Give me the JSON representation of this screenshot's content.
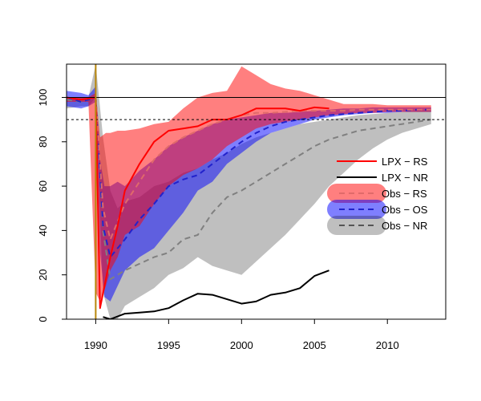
{
  "chart_data": {
    "type": "line",
    "title": "",
    "xlabel": "",
    "ylabel": "",
    "xlim": [
      1988,
      2014
    ],
    "ylim": [
      0,
      115
    ],
    "x_ticks": [
      1990,
      1995,
      2000,
      2005,
      2010
    ],
    "x_tick_labels": [
      "1990",
      "1995",
      "2000",
      "2005",
      "2010"
    ],
    "y_ticks": [
      0,
      20,
      40,
      60,
      80,
      100
    ],
    "y_tick_labels": [
      "0",
      "20",
      "40",
      "60",
      "80",
      "100"
    ],
    "grid": false,
    "reference_lines": [
      {
        "y": 100,
        "style": "solid"
      },
      {
        "y": 90,
        "style": "dotted"
      }
    ],
    "event_line": {
      "x": 1990,
      "color": "#B8860B"
    },
    "legend_position": "right",
    "colors": {
      "lpx_rs": "#FF0000",
      "lpx_nr": "#000000",
      "band_rs": "#FF000080",
      "band_os": "#0000FF80",
      "band_nr": "#00000040",
      "median_rs": "#E06A6A",
      "median_os": "#2222CC",
      "median_nr": "#808080"
    },
    "legend": [
      {
        "label": "LPX − RS",
        "kind": "line",
        "color": "#FF0000"
      },
      {
        "label": "LPX − NR",
        "kind": "line",
        "color": "#000000"
      },
      {
        "label": "Obs − RS",
        "kind": "band",
        "color": "#FF000080",
        "dash_color": "#E06A6A"
      },
      {
        "label": "Obs − OS",
        "kind": "band",
        "color": "#0000FF80",
        "dash_color": "#2222CC"
      },
      {
        "label": "Obs − NR",
        "kind": "band",
        "color": "#00000040",
        "dash_color": "#555555"
      }
    ],
    "bands": [
      {
        "name": "Obs − NR",
        "color": "#00000040",
        "x": [
          1988,
          1989,
          1989.5,
          1990,
          1990.5,
          1991,
          1991.5,
          1992,
          1993,
          1994,
          1995,
          1996,
          1997,
          1998,
          1999,
          2000,
          2001,
          2002,
          2003,
          2004,
          2005,
          2006,
          2007,
          2008,
          2009,
          2010,
          2011,
          2012,
          2013
        ],
        "upper": [
          100,
          100,
          100,
          115,
          82,
          58,
          50,
          53,
          55,
          60,
          62,
          66,
          68,
          72,
          75,
          79,
          82,
          84,
          86,
          88,
          89,
          90,
          91,
          92,
          92.5,
          93,
          93.5,
          94,
          94
        ],
        "lower": [
          95,
          96,
          96,
          100,
          12,
          0,
          0,
          6,
          10,
          14,
          20,
          23,
          28,
          24,
          22,
          20,
          26,
          32,
          38,
          45,
          52,
          60,
          66,
          72,
          77,
          81,
          84,
          86,
          88
        ]
      },
      {
        "name": "Obs − OS",
        "color": "#0000FF80",
        "x": [
          1988,
          1989,
          1989.5,
          1990,
          1990.3,
          1990.6,
          1991,
          1991.5,
          1992,
          1993,
          1994,
          1995,
          1996,
          1997,
          1998,
          1999,
          2000,
          2001,
          2002,
          2003,
          2004,
          2005,
          2006,
          2007,
          2008,
          2009,
          2010,
          2011,
          2012,
          2013
        ],
        "upper": [
          103,
          102,
          101,
          105,
          72,
          60,
          60,
          62,
          60,
          67,
          72,
          78,
          82,
          85,
          88,
          90,
          91,
          92,
          93,
          93,
          93.5,
          94,
          94.5,
          95,
          95,
          95.5,
          95.5,
          95.5,
          95.5,
          95.5
        ],
        "lower": [
          96,
          95,
          96,
          98,
          30,
          10,
          8,
          15,
          22,
          28,
          32,
          40,
          48,
          58,
          62,
          70,
          75,
          80,
          84,
          86,
          88,
          90,
          91,
          92,
          92.5,
          93,
          93,
          93.5,
          93.5,
          93.5
        ]
      },
      {
        "name": "Obs − RS",
        "color": "#FF000080",
        "x": [
          1988,
          1989,
          1989.5,
          1990,
          1990.3,
          1990.7,
          1991,
          1991.5,
          1992,
          1993,
          1994,
          1995,
          1996,
          1997,
          1998,
          1999,
          2000,
          2001,
          2002,
          2003,
          2004,
          2005,
          2006,
          2007,
          2008,
          2009,
          2010,
          2011,
          2012,
          2013
        ],
        "upper": [
          100,
          100,
          100,
          102,
          82,
          84,
          84,
          85,
          85,
          86,
          88,
          89,
          95,
          100,
          102,
          103,
          114,
          110,
          106,
          104,
          103,
          101,
          99,
          97,
          97,
          97,
          96.5,
          96.5,
          96.5,
          96.5
        ],
        "lower": [
          98,
          98,
          98,
          12,
          8,
          15,
          22,
          28,
          38,
          42,
          52,
          60,
          65,
          68,
          72,
          78,
          82,
          86,
          88,
          89,
          90,
          91,
          92,
          92.5,
          93,
          93,
          93.5,
          93.5,
          93.5,
          93.5
        ]
      }
    ],
    "series": [
      {
        "name": "Obs − NR",
        "style": "dashed",
        "color": "#808080",
        "x": [
          1988,
          1989,
          1990,
          1990.5,
          1991,
          1992,
          1993,
          1994,
          1995,
          1996,
          1997,
          1998,
          1999,
          2000,
          2001,
          2002,
          2003,
          2004,
          2005,
          2006,
          2007,
          2008,
          2009,
          2010,
          2011,
          2012,
          2013
        ],
        "y": [
          99,
          98,
          100,
          40,
          18,
          22,
          25,
          28,
          30,
          36,
          38,
          48,
          55,
          58,
          62,
          66,
          70,
          74,
          78,
          81,
          83,
          85,
          86,
          87,
          88,
          89,
          90
        ]
      },
      {
        "name": "Obs − OS",
        "style": "dashed",
        "color": "#2222CC",
        "x": [
          1988,
          1989,
          1990,
          1990.5,
          1991,
          1992,
          1993,
          1994,
          1995,
          1996,
          1997,
          1998,
          1999,
          2000,
          2001,
          2002,
          2003,
          2004,
          2005,
          2006,
          2007,
          2008,
          2009,
          2010,
          2011,
          2012,
          2013
        ],
        "y": [
          100,
          98,
          100,
          42,
          28,
          36,
          45,
          52,
          60,
          63,
          65,
          70,
          75,
          80,
          84,
          87,
          89,
          90,
          91,
          92,
          92.5,
          93,
          93.5,
          94,
          94,
          94.5,
          94.5
        ]
      },
      {
        "name": "Obs − RS",
        "style": "dashed",
        "color": "#E06A6A",
        "x": [
          1988,
          1989,
          1990,
          1990.5,
          1991,
          1992,
          1993,
          1994,
          1995,
          1996,
          1997,
          1998,
          1999,
          2000,
          2001,
          2002,
          2003,
          2004,
          2005,
          2006,
          2007,
          2008,
          2009,
          2010,
          2011,
          2012,
          2013
        ],
        "y": [
          100,
          99,
          100,
          50,
          36,
          52,
          62,
          72,
          78,
          82,
          85,
          88,
          90,
          92,
          93,
          93,
          93.5,
          94,
          94,
          94,
          94,
          94.5,
          94.5,
          94.5,
          94.5,
          94.5,
          94.5
        ]
      },
      {
        "name": "LPX − RS",
        "style": "solid",
        "color": "#FF0000",
        "x": [
          1988,
          1989,
          1990,
          1990.3,
          1991,
          1991.5,
          1992,
          1993,
          1994,
          1995,
          1996,
          1997,
          1998,
          1999,
          2000,
          2001,
          2002,
          2003,
          2004,
          2005,
          2006
        ],
        "y": [
          100,
          99,
          100,
          5,
          28,
          42,
          58,
          70,
          80,
          85,
          86,
          87,
          90,
          90,
          92,
          95,
          95,
          95,
          94,
          95.5,
          95
        ]
      },
      {
        "name": "LPX − NR",
        "style": "solid",
        "color": "#000000",
        "x": [
          1990.5,
          1991,
          1992,
          1993,
          1994,
          1995,
          1996,
          1997,
          1998,
          1999,
          2000,
          2001,
          2002,
          2003,
          2004,
          2005,
          2006
        ],
        "y": [
          1,
          0,
          2.5,
          3,
          3.5,
          5,
          8.5,
          11.5,
          11,
          9,
          7,
          8,
          11,
          12,
          14,
          19.5,
          22
        ]
      }
    ]
  }
}
